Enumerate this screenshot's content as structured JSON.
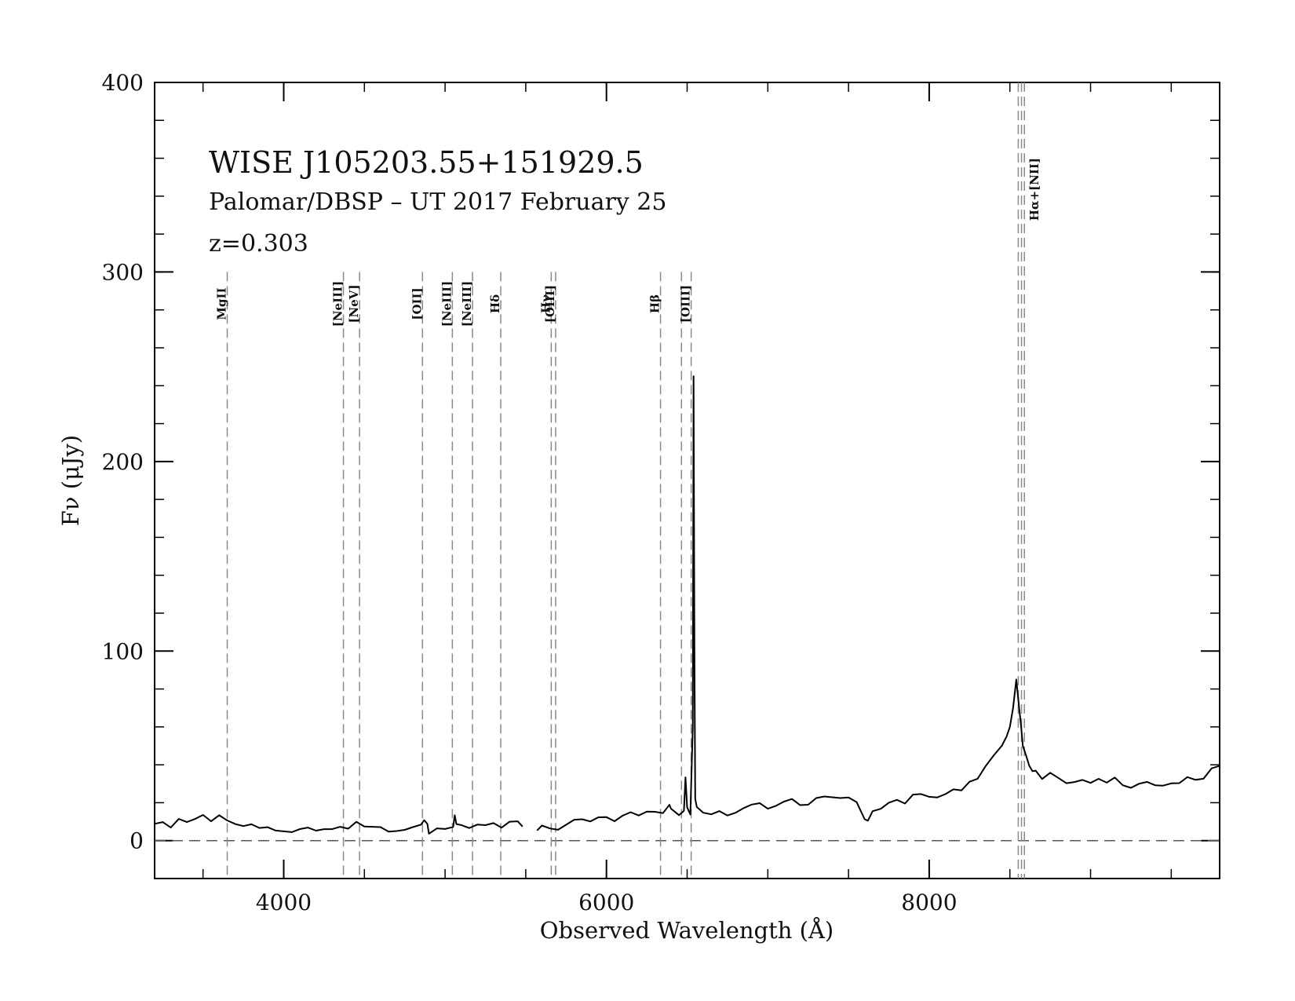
{
  "chart_data": {
    "type": "line",
    "title": "WISE J105203.55+151929.5",
    "subtitle": "Palomar/DBSP – UT 2017 February 25",
    "redshift_label": "z=0.303",
    "xlabel": "Observed Wavelength (Å)",
    "ylabel": "Fν (μJy)",
    "xlim": [
      3200,
      9800
    ],
    "ylim": [
      -20,
      400
    ],
    "xticks": [
      4000,
      6000,
      8000
    ],
    "yticks": [
      0,
      100,
      200,
      300,
      400
    ],
    "x_minor_step": 500,
    "y_minor_step": 20,
    "zero_line": 0,
    "series": [
      {
        "segments": [
          {
            "x": [
              3200,
              3250,
              3300,
              3350,
              3400,
              3450,
              3500,
              3550,
              3600,
              3650,
              3700,
              3750,
              3800,
              3850,
              3900,
              3950,
              4000,
              4050,
              4100,
              4150,
              4200,
              4250,
              4300,
              4350,
              4400,
              4450,
              4500,
              4550,
              4600,
              4650,
              4700,
              4750,
              4800,
              4850,
              4870,
              4890,
              4900,
              4950,
              5000,
              5050,
              5060,
              5070,
              5100,
              5150,
              5200,
              5250,
              5300,
              5350,
              5400,
              5450,
              5480
            ],
            "y": [
              10,
              8,
              7,
              9,
              8,
              10,
              12,
              10,
              11,
              13,
              10,
              8,
              7,
              6,
              6,
              5,
              5,
              5,
              6,
              5,
              5,
              6,
              5,
              6,
              7,
              8,
              7,
              6,
              6,
              6,
              6,
              7,
              7,
              7,
              13,
              7,
              6,
              7,
              7,
              7,
              14,
              7,
              7,
              7,
              7,
              8,
              9,
              9,
              10,
              11,
              9
            ]
          },
          {
            "x": [
              5570,
              5600,
              5650,
              5700,
              5750,
              5800,
              5850,
              5900,
              5950,
              6000,
              6050,
              6100,
              6150,
              6200,
              6250,
              6300,
              6350,
              6390,
              6400,
              6450,
              6480,
              6490,
              6500,
              6520,
              6535,
              6540,
              6545,
              6550,
              6560,
              6600,
              6650,
              6700,
              6750,
              6800,
              6850,
              6900,
              6950,
              7000,
              7050,
              7100,
              7150,
              7200,
              7250,
              7300,
              7350,
              7400,
              7450,
              7500,
              7550,
              7600,
              7620,
              7650,
              7700,
              7750,
              7800,
              7850,
              7900,
              7950,
              8000,
              8050,
              8100,
              8150,
              8200,
              8250,
              8300,
              8350,
              8400,
              8450,
              8480,
              8500,
              8520,
              8540,
              8560,
              8570,
              8580,
              8600,
              8620,
              8640,
              8660,
              8700,
              8750,
              8800,
              8850,
              8900,
              8950,
              9000,
              9050,
              9100,
              9150,
              9200,
              9250,
              9300,
              9350,
              9400,
              9450,
              9500,
              9550,
              9600,
              9650,
              9700,
              9750,
              9800
            ],
            "y": [
              6,
              7,
              8,
              8,
              9,
              9,
              10,
              10,
              11,
              11,
              12,
              12,
              13,
              13,
              14,
              14,
              15,
              18,
              15,
              15,
              16,
              35,
              17,
              16,
              60,
              245,
              100,
              20,
              16,
              15,
              14,
              14,
              15,
              16,
              16,
              17,
              18,
              19,
              19,
              20,
              20,
              20,
              21,
              21,
              22,
              22,
              21,
              21,
              20,
              9,
              12,
              15,
              18,
              20,
              21,
              22,
              22,
              23,
              22,
              23,
              25,
              27,
              28,
              30,
              35,
              40,
              45,
              50,
              55,
              60,
              70,
              85,
              68,
              60,
              50,
              45,
              40,
              38,
              36,
              35,
              34,
              33,
              32,
              31,
              30,
              30,
              31,
              32,
              32,
              31,
              30,
              30,
              29,
              28,
              30,
              31,
              32,
              33,
              34,
              35,
              37,
              38
            ]
          }
        ]
      }
    ],
    "emission_lines": [
      {
        "label": "MgII",
        "x": [
          3650
        ]
      },
      {
        "label": "[NeIII]",
        "x": [
          4370
        ]
      },
      {
        "label": "[NeV]",
        "x": [
          4470
        ]
      },
      {
        "label": "[OII]",
        "x": [
          4860
        ]
      },
      {
        "label": "[NeIII]",
        "x": [
          5045
        ]
      },
      {
        "label": "[NeIII]",
        "x": [
          5170
        ]
      },
      {
        "label": "Hδ",
        "x": [
          5345
        ]
      },
      {
        "label": "Hγ",
        "x": [
          5658
        ]
      },
      {
        "label": "[OIII]",
        "x": [
          5685
        ]
      },
      {
        "label": "Hβ",
        "x": [
          6335
        ]
      },
      {
        "label": "[OIII]",
        "x": [
          6465,
          6525
        ]
      },
      {
        "label": "Hα+[NII]",
        "x": [
          8552,
          8572,
          8590
        ]
      }
    ],
    "colors": {
      "spectrum": "#000000",
      "marker_lines": "#8a8a8a",
      "axes": "#000000"
    }
  }
}
